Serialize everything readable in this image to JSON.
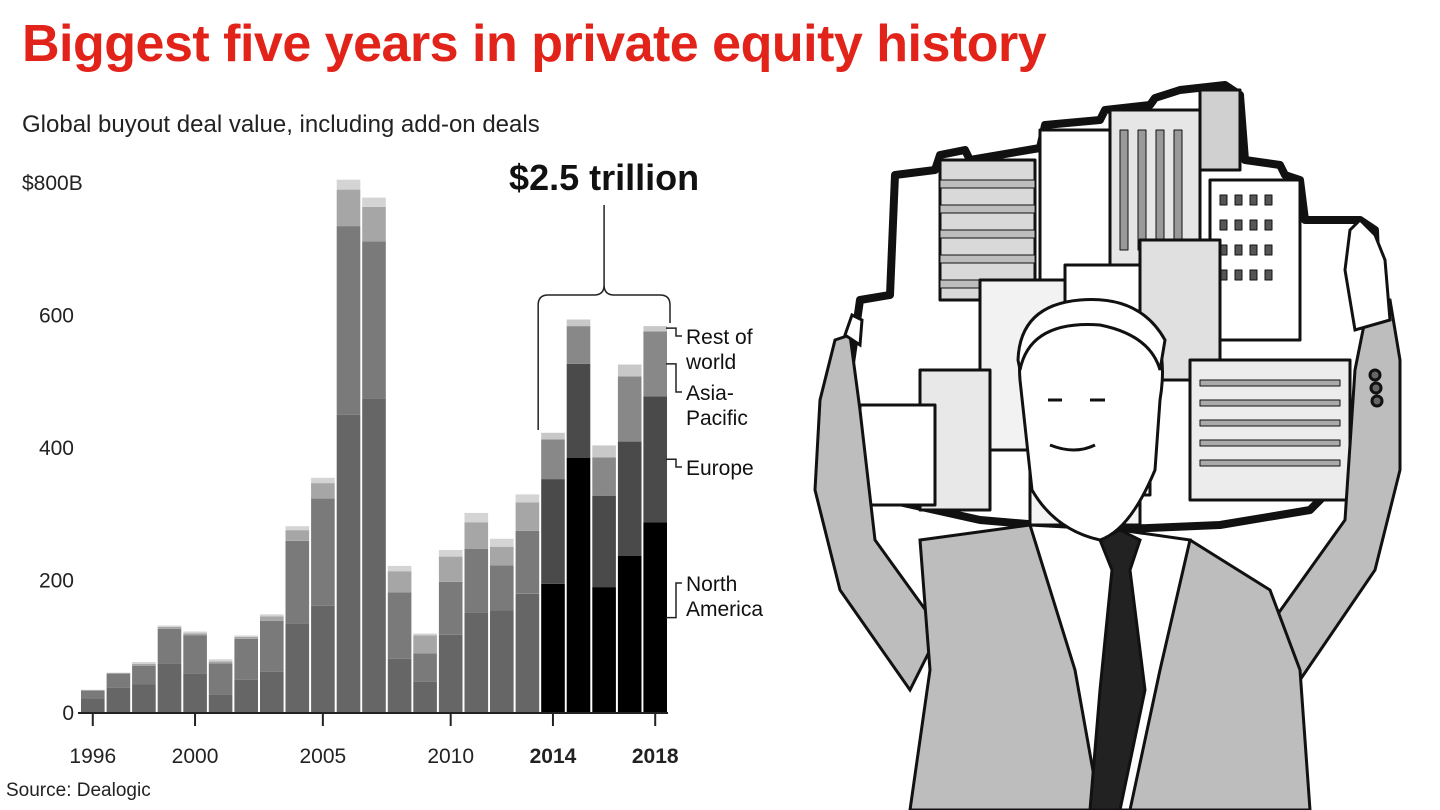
{
  "title": "Biggest five years in private equity history",
  "subtitle": "Global buyout deal value, including add-on deals",
  "source": "Source: Dealogic",
  "colors": {
    "title": "#e2231a",
    "north_america": "#666666",
    "europe": "#7a7a7a",
    "asia_pacific": "#a6a6a6",
    "rest_of_world": "#d4d4d4",
    "highlight_north_america": "#000000",
    "highlight_europe": "#4a4a4a",
    "highlight_asia_pacific": "#888888",
    "highlight_rest_of_world": "#c8c8c8"
  },
  "chart_data": {
    "type": "bar",
    "stacked": true,
    "categories": [
      "1996",
      "1997",
      "1998",
      "1999",
      "2000",
      "2001",
      "2002",
      "2003",
      "2004",
      "2005",
      "2006",
      "2007",
      "2008",
      "2009",
      "2010",
      "2011",
      "2012",
      "2013",
      "2014",
      "2015",
      "2016",
      "2017",
      "2018"
    ],
    "x_tick_labels": [
      {
        "year": "1996",
        "label": "1996",
        "bold": false
      },
      {
        "year": "2000",
        "label": "2000",
        "bold": false
      },
      {
        "year": "2005",
        "label": "2005",
        "bold": false
      },
      {
        "year": "2010",
        "label": "2010",
        "bold": false
      },
      {
        "year": "2014",
        "label": "2014",
        "bold": true
      },
      {
        "year": "2018",
        "label": "2018",
        "bold": true
      }
    ],
    "y_ticks": [
      {
        "value": 0,
        "label": "0"
      },
      {
        "value": 200,
        "label": "200"
      },
      {
        "value": 400,
        "label": "400"
      },
      {
        "value": 600,
        "label": "600"
      },
      {
        "value": 800,
        "label": "$800B"
      }
    ],
    "ylim": [
      0,
      800
    ],
    "highlight_years": [
      "2014",
      "2015",
      "2016",
      "2017",
      "2018"
    ],
    "series": [
      {
        "name": "North America",
        "values": [
          22,
          38,
          43,
          75,
          60,
          28,
          50,
          62,
          135,
          162,
          450,
          475,
          82,
          47,
          118,
          152,
          155,
          180,
          195,
          385,
          190,
          237,
          288
        ]
      },
      {
        "name": "Europe",
        "values": [
          12,
          22,
          28,
          52,
          57,
          47,
          62,
          77,
          125,
          162,
          285,
          237,
          100,
          43,
          80,
          96,
          68,
          95,
          158,
          142,
          138,
          173,
          190
        ]
      },
      {
        "name": "Asia-Pacific",
        "values": [
          0,
          0,
          3,
          3,
          3,
          3,
          3,
          7,
          16,
          23,
          55,
          52,
          32,
          27,
          38,
          40,
          28,
          43,
          60,
          57,
          58,
          98,
          98
        ]
      },
      {
        "name": "Rest of world",
        "values": [
          1,
          1,
          3,
          2,
          3,
          3,
          2,
          3,
          6,
          8,
          15,
          14,
          8,
          3,
          10,
          14,
          12,
          12,
          10,
          10,
          18,
          18,
          8
        ]
      }
    ],
    "legend": [
      {
        "label": "Rest of\nworld"
      },
      {
        "label": "Asia-\nPacific"
      },
      {
        "label": "Europe"
      },
      {
        "label": "North\nAmerica"
      }
    ],
    "annotation": {
      "label": "$2.5 trillion",
      "from_year": "2014",
      "to_year": "2018"
    },
    "grid": false
  }
}
